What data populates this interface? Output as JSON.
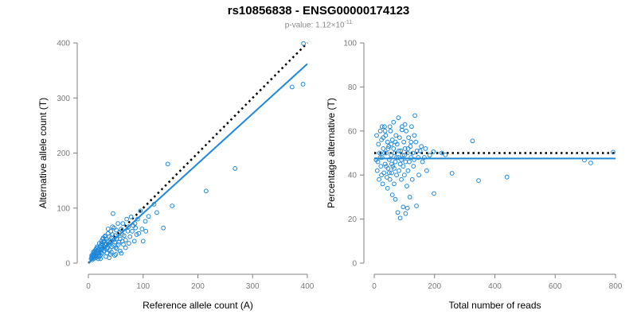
{
  "header": {
    "title": "rs10856838 - ENSG00000174123",
    "pvalue_prefix": "p-value: 1.12×10",
    "pvalue_exponent": "-11"
  },
  "colors": {
    "points": "#1f88d8",
    "fit_line": "#1f88d8",
    "reference_line": "#000000",
    "axes": "#808080"
  },
  "chart_data": [
    {
      "type": "scatter",
      "xlabel": "Reference allele count (A)",
      "ylabel": "Alternative allele count (T)",
      "xlim": [
        0,
        400
      ],
      "ylim": [
        0,
        400
      ],
      "xticks": [
        "0",
        "100",
        "200",
        "300",
        "400"
      ],
      "yticks": [
        "0",
        "100",
        "200",
        "300",
        "400"
      ],
      "fit_line": {
        "x": [
          0,
          400
        ],
        "y": [
          0,
          362
        ],
        "style": "solid"
      },
      "reference_line": {
        "x": [
          0,
          400
        ],
        "y": [
          0,
          400
        ],
        "style": "dotted"
      },
      "points": [
        [
          393,
          399
        ],
        [
          372,
          320
        ],
        [
          392,
          325
        ],
        [
          268,
          172
        ],
        [
          215,
          131
        ],
        [
          153,
          104
        ],
        [
          145,
          180
        ],
        [
          137,
          64
        ],
        [
          125,
          92
        ],
        [
          120,
          107
        ],
        [
          110,
          85
        ],
        [
          105,
          58
        ],
        [
          100,
          40
        ],
        [
          98,
          62
        ],
        [
          95,
          95
        ],
        [
          90,
          80
        ],
        [
          88,
          52
        ],
        [
          85,
          72
        ],
        [
          82,
          68
        ],
        [
          80,
          58
        ],
        [
          78,
          84
        ],
        [
          76,
          48
        ],
        [
          73,
          66
        ],
        [
          70,
          80
        ],
        [
          68,
          28
        ],
        [
          65,
          50
        ],
        [
          63,
          72
        ],
        [
          62,
          40
        ],
        [
          60,
          62
        ],
        [
          58,
          44
        ],
        [
          56,
          55
        ],
        [
          55,
          34
        ],
        [
          54,
          72
        ],
        [
          52,
          45
        ],
        [
          51,
          60
        ],
        [
          50,
          28
        ],
        [
          49,
          50
        ],
        [
          48,
          38
        ],
        [
          47,
          64
        ],
        [
          46,
          42
        ],
        [
          45,
          90
        ],
        [
          44,
          52
        ],
        [
          43,
          30
        ],
        [
          42,
          46
        ],
        [
          41,
          58
        ],
        [
          40,
          38
        ],
        [
          39,
          24
        ],
        [
          38,
          48
        ],
        [
          37,
          34
        ],
        [
          36,
          62
        ],
        [
          35,
          40
        ],
        [
          35,
          28
        ],
        [
          34,
          18
        ],
        [
          33,
          44
        ],
        [
          32,
          36
        ],
        [
          31,
          50
        ],
        [
          30,
          26
        ],
        [
          30,
          34
        ],
        [
          29,
          40
        ],
        [
          28,
          22
        ],
        [
          28,
          30
        ],
        [
          27,
          46
        ],
        [
          26,
          34
        ],
        [
          25,
          18
        ],
        [
          25,
          28
        ],
        [
          24,
          40
        ],
        [
          23,
          24
        ],
        [
          23,
          32
        ],
        [
          22,
          20
        ],
        [
          22,
          14
        ],
        [
          21,
          30
        ],
        [
          20,
          26
        ],
        [
          20,
          36
        ],
        [
          19,
          18
        ],
        [
          18,
          24
        ],
        [
          18,
          12
        ],
        [
          17,
          28
        ],
        [
          16,
          20
        ],
        [
          16,
          30
        ],
        [
          15,
          14
        ],
        [
          15,
          22
        ],
        [
          14,
          26
        ],
        [
          14,
          10
        ],
        [
          13,
          18
        ],
        [
          13,
          24
        ],
        [
          12,
          14
        ],
        [
          12,
          20
        ],
        [
          11,
          12
        ],
        [
          11,
          22
        ],
        [
          10,
          16
        ],
        [
          10,
          8
        ],
        [
          9,
          14
        ],
        [
          9,
          20
        ],
        [
          8,
          10
        ],
        [
          8,
          16
        ],
        [
          7,
          12
        ],
        [
          7,
          6
        ],
        [
          6,
          10
        ],
        [
          6,
          14
        ],
        [
          5,
          8
        ],
        [
          60,
          18
        ],
        [
          48,
          14
        ],
        [
          42,
          20
        ],
        [
          38,
          10
        ],
        [
          32,
          12
        ],
        [
          26,
          44
        ],
        [
          28,
          38
        ],
        [
          40,
          16
        ],
        [
          58,
          22
        ],
        [
          68,
          42
        ],
        [
          44,
          66
        ],
        [
          36,
          54
        ],
        [
          30,
          48
        ],
        [
          24,
          36
        ],
        [
          34,
          26
        ],
        [
          46,
          32
        ],
        [
          52,
          26
        ],
        [
          56,
          38
        ],
        [
          62,
          52
        ],
        [
          72,
          58
        ],
        [
          50,
          16
        ],
        [
          18,
          8
        ],
        [
          20,
          12
        ],
        [
          22,
          8
        ],
        [
          64,
          34
        ],
        [
          74,
          36
        ],
        [
          84,
          40
        ],
        [
          92,
          54
        ],
        [
          104,
          76
        ],
        [
          86,
          64
        ]
      ]
    },
    {
      "type": "scatter",
      "xlabel": "Total number of reads",
      "ylabel": "Percentage alternative (T)",
      "xlim": [
        0,
        800
      ],
      "ylim": [
        0,
        100
      ],
      "xticks": [
        "0",
        "200",
        "400",
        "600",
        "800"
      ],
      "yticks": [
        "0",
        "20",
        "40",
        "60",
        "80",
        "100"
      ],
      "fit_line": {
        "x": [
          0,
          800
        ],
        "y": [
          47.5,
          47.5
        ],
        "style": "solid"
      },
      "reference_line": {
        "x": [
          0,
          800
        ],
        "y": [
          50,
          50
        ],
        "style": "dotted"
      },
      "points": [
        [
          792,
          50.4
        ],
        [
          718,
          45.5
        ],
        [
          697,
          46.8
        ],
        [
          440,
          39.1
        ],
        [
          346,
          37.5
        ],
        [
          326,
          55.5
        ],
        [
          258,
          40.8
        ],
        [
          236,
          49.2
        ],
        [
          224,
          50.0
        ],
        [
          198,
          31.6
        ],
        [
          196,
          50.6
        ],
        [
          184,
          49.0
        ],
        [
          174,
          42.0
        ],
        [
          170,
          52.0
        ],
        [
          160,
          46.0
        ],
        [
          152,
          51.0
        ],
        [
          148,
          40.0
        ],
        [
          146,
          48.0
        ],
        [
          140,
          26.0
        ],
        [
          138,
          55.0
        ],
        [
          135,
          67.0
        ],
        [
          133,
          58.0
        ],
        [
          130,
          44.0
        ],
        [
          128,
          50.0
        ],
        [
          126,
          38.0
        ],
        [
          124,
          62.0
        ],
        [
          122,
          48.0
        ],
        [
          120,
          53.0
        ],
        [
          118,
          30.0
        ],
        [
          116,
          46.0
        ],
        [
          114,
          57.0
        ],
        [
          112,
          42.0
        ],
        [
          110,
          50.0
        ],
        [
          108,
          35.0
        ],
        [
          106,
          60.0
        ],
        [
          104,
          46.0
        ],
        [
          102,
          52.0
        ],
        [
          100,
          40.0
        ],
        [
          98,
          55.0
        ],
        [
          96,
          44.0
        ],
        [
          94,
          49.0
        ],
        [
          92,
          62.0
        ],
        [
          90,
          38.0
        ],
        [
          88,
          51.0
        ],
        [
          86,
          45.0
        ],
        [
          84,
          57.0
        ],
        [
          82,
          42.0
        ],
        [
          80,
          48.0
        ],
        [
          78,
          23.0
        ],
        [
          76,
          54.0
        ],
        [
          74,
          40.0
        ],
        [
          72,
          58.0
        ],
        [
          70,
          46.0
        ],
        [
          68,
          50.0
        ],
        [
          66,
          36.0
        ],
        [
          64,
          52.0
        ],
        [
          62,
          44.0
        ],
        [
          60,
          56.0
        ],
        [
          58,
          41.0
        ],
        [
          56,
          49.0
        ],
        [
          54,
          60.0
        ],
        [
          52,
          38.0
        ],
        [
          50,
          47.0
        ],
        [
          48,
          53.0
        ],
        [
          46,
          43.0
        ],
        [
          44,
          55.0
        ],
        [
          42,
          39.0
        ],
        [
          40,
          50.0
        ],
        [
          38,
          58.0
        ],
        [
          36,
          45.0
        ],
        [
          34,
          62.0
        ],
        [
          32,
          41.0
        ],
        [
          30,
          52.0
        ],
        [
          28,
          36.0
        ],
        [
          26,
          48.0
        ],
        [
          24,
          56.0
        ],
        [
          22,
          44.0
        ],
        [
          20,
          60.0
        ],
        [
          18,
          50.0
        ],
        [
          16,
          38.0
        ],
        [
          14,
          54.0
        ],
        [
          12,
          46.0
        ],
        [
          10,
          42.0
        ],
        [
          8,
          58.0
        ],
        [
          6,
          47.0
        ],
        [
          110,
          25.0
        ],
        [
          86,
          20.5
        ],
        [
          96,
          25.5
        ],
        [
          104,
          22.5
        ],
        [
          70,
          29.0
        ],
        [
          60,
          31.0
        ],
        [
          44,
          34.0
        ],
        [
          52,
          62.0
        ],
        [
          64,
          64.0
        ],
        [
          80,
          66.0
        ],
        [
          92,
          60.5
        ],
        [
          102,
          63.0
        ],
        [
          36,
          60.0
        ],
        [
          26,
          62.0
        ],
        [
          30,
          57.0
        ],
        [
          40,
          44.0
        ],
        [
          50,
          41.0
        ],
        [
          58,
          45.0
        ],
        [
          66,
          43.0
        ],
        [
          74,
          48.0
        ],
        [
          82,
          51.0
        ],
        [
          90,
          47.0
        ],
        [
          100,
          49.0
        ],
        [
          112,
          52.0
        ],
        [
          122,
          55.0
        ],
        [
          132,
          47.0
        ],
        [
          142,
          51.0
        ],
        [
          156,
          53.0
        ],
        [
          166,
          48.0
        ],
        [
          20,
          48.0
        ],
        [
          24,
          40.0
        ],
        [
          34,
          50.0
        ],
        [
          46,
          52.0
        ],
        [
          56,
          54.0
        ],
        [
          70,
          55.0
        ]
      ]
    }
  ]
}
